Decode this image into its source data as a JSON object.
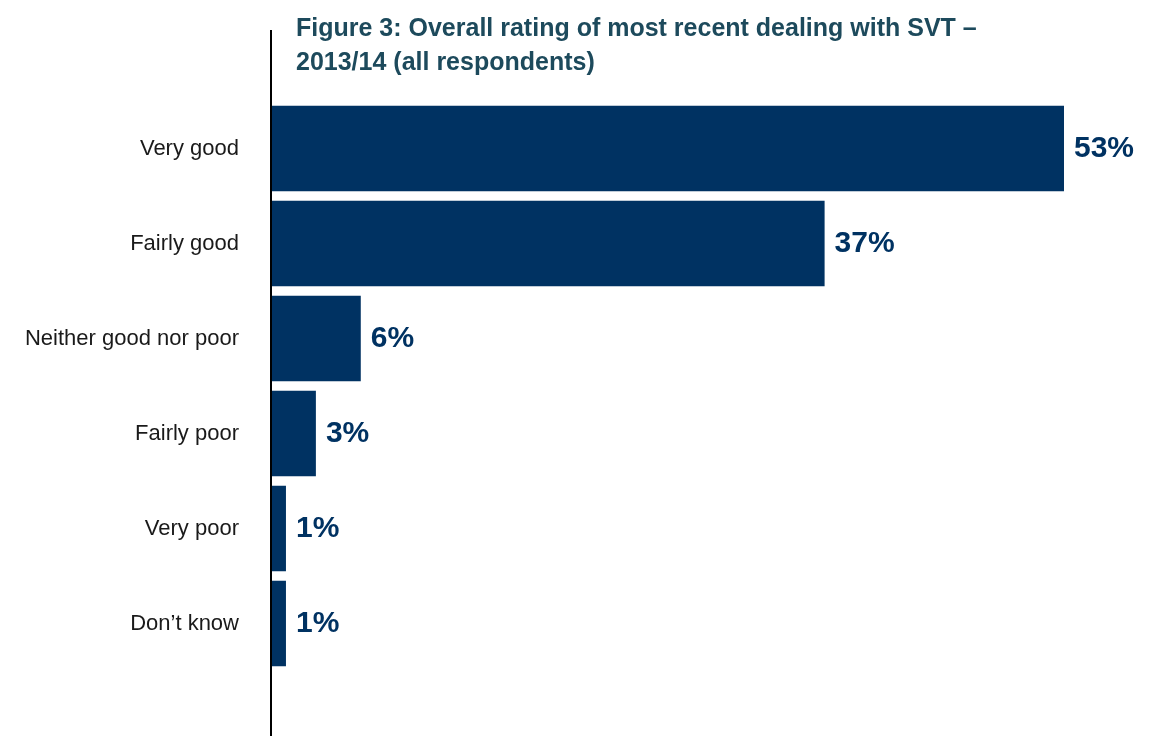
{
  "chart_data": {
    "type": "bar",
    "orientation": "horizontal",
    "title": "Figure 3: Overall rating of most recent dealing with SVT – 2013/14 (all respondents)",
    "categories": [
      "Very good",
      "Fairly good",
      "Neither good nor poor",
      "Fairly poor",
      "Very poor",
      "Don’t know"
    ],
    "values": [
      53,
      37,
      6,
      3,
      1,
      1
    ],
    "value_labels": [
      "53%",
      "37%",
      "6%",
      "3%",
      "1%",
      "1%"
    ],
    "color": "#003262"
  }
}
